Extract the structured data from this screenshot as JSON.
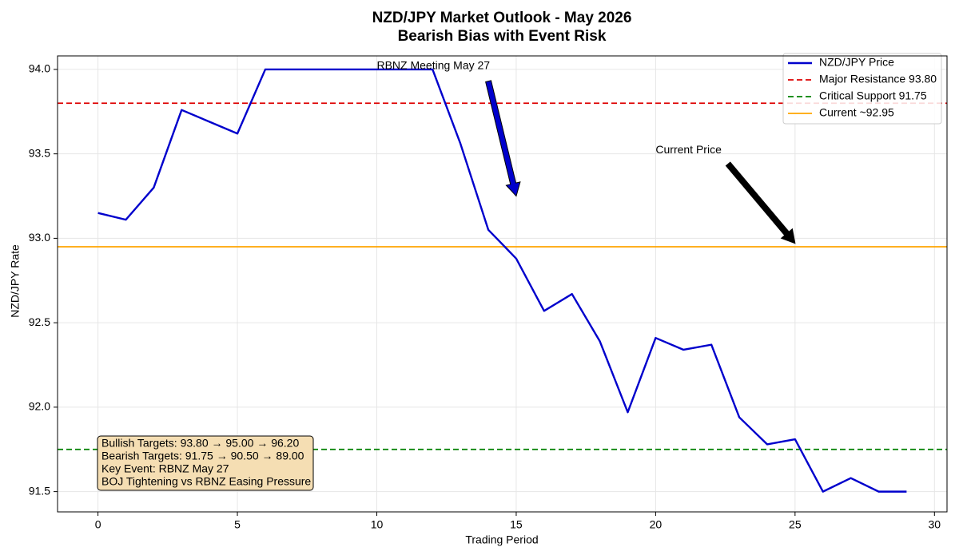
{
  "chart_data": {
    "type": "line",
    "title": "NZD/JPY Market Outlook - May 2026",
    "subtitle": "Bearish Bias with Event Risk",
    "x_label": "Trading Period",
    "y_label": "NZD/JPY Rate",
    "x": [
      0,
      1,
      2,
      3,
      4,
      5,
      6,
      7,
      8,
      9,
      10,
      11,
      12,
      13,
      14,
      15,
      16,
      17,
      18,
      19,
      20,
      21,
      22,
      23,
      24,
      25,
      26,
      27,
      28,
      29
    ],
    "series": [
      {
        "name": "NZD/JPY Price",
        "color": "#0000cc",
        "values": [
          93.15,
          93.11,
          93.3,
          93.76,
          93.69,
          93.62,
          94.0,
          94.0,
          94.0,
          94.0,
          94.0,
          94.0,
          94.0,
          93.56,
          93.05,
          92.88,
          92.57,
          92.67,
          92.39,
          91.97,
          92.41,
          92.34,
          92.37,
          91.94,
          91.78,
          91.81,
          91.5,
          91.58,
          91.5,
          91.5
        ]
      }
    ],
    "hlines": [
      {
        "name": "Major Resistance 93.80",
        "value": 93.8,
        "color": "#dd0000",
        "style": "dashed"
      },
      {
        "name": "Critical Support 91.75",
        "value": 91.75,
        "color": "#008000",
        "style": "dashed"
      },
      {
        "name": "Current ~92.95",
        "value": 92.95,
        "color": "#ffa500",
        "style": "solid"
      }
    ],
    "annotations": [
      {
        "text": "RBNZ Meeting May 27",
        "xy": [
          15,
          93.25
        ],
        "xytext": [
          10,
          94.02
        ],
        "color": "#0000cc"
      },
      {
        "text": "Current Price",
        "xy": [
          25,
          92.97
        ],
        "xytext": [
          20,
          93.52
        ],
        "color": "#000000"
      }
    ],
    "info_box": [
      "Bullish Targets: 93.80 → 95.00 → 96.20",
      "Bearish Targets: 91.75 → 90.50 → 89.00",
      "Key Event: RBNZ May 27",
      "BOJ Tightening vs RBNZ Easing Pressure"
    ],
    "xlim": [
      -1.45,
      30.45
    ],
    "ylim": [
      91.38,
      94.08
    ],
    "xticks": [
      0,
      5,
      10,
      15,
      20,
      25,
      30
    ],
    "yticks": [
      91.5,
      {
        "value": 92.0,
        "label": "92.0"
      },
      92.5,
      {
        "value": 93.0,
        "label": "93.0"
      },
      93.5,
      {
        "value": 94.0,
        "label": "94.0"
      }
    ],
    "grid": true,
    "legend": "upper right"
  }
}
